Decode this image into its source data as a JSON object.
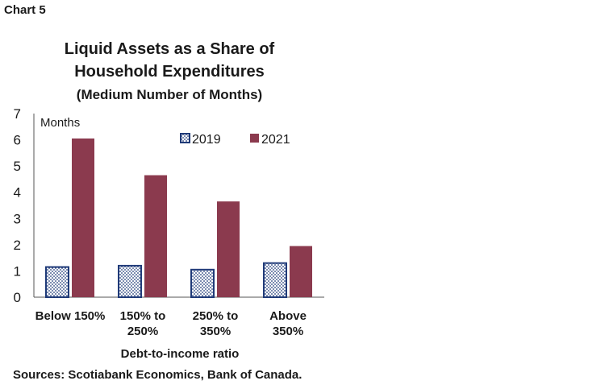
{
  "header": {
    "chart_label": "Chart 5"
  },
  "chart_data": {
    "type": "bar",
    "title": [
      "Liquid Assets as a Share of",
      "Household Expenditures",
      "(Medium  Number  of Months)"
    ],
    "ylabel": "Months",
    "xlabel": "Debt-to-income ratio",
    "categories": [
      [
        "Below 150%"
      ],
      [
        "150% to",
        "250%"
      ],
      [
        "250% to",
        "350%"
      ],
      [
        "Above",
        "350%"
      ]
    ],
    "series": [
      {
        "name": "2019",
        "values": [
          1.15,
          1.2,
          1.05,
          1.3
        ],
        "color": "#1f3a78",
        "pattern": "dotted"
      },
      {
        "name": "2021",
        "values": [
          6.05,
          4.65,
          3.65,
          1.95
        ],
        "color": "#8b3a4e",
        "pattern": "solid"
      }
    ],
    "ylim": [
      0,
      7
    ],
    "yticks": [
      "0",
      "1",
      "2",
      "3",
      "4",
      "5",
      "6",
      "7"
    ],
    "legend_position": "top-right",
    "grid": false
  },
  "footer": {
    "source": "Sources: Scotiabank Economics, Bank of Canada."
  }
}
